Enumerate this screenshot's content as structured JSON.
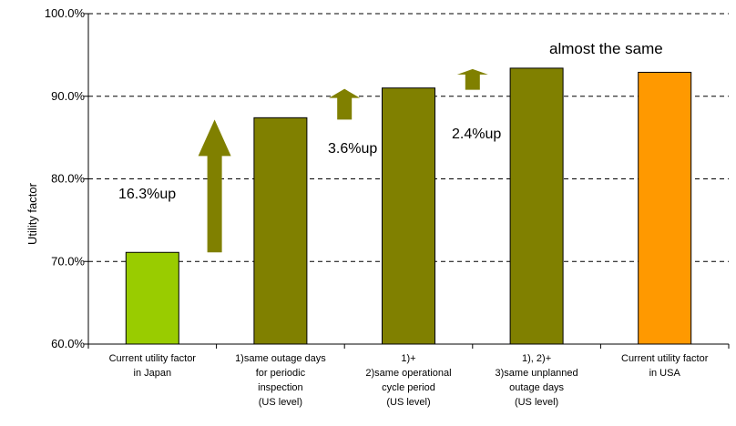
{
  "chart_data": {
    "type": "bar",
    "title": "",
    "xlabel": "",
    "ylabel": "Utility factor",
    "ylim": [
      60,
      100
    ],
    "yticks": [
      "60.0%",
      "70.0%",
      "80.0%",
      "90.0%",
      "100.0%"
    ],
    "ytick_values": [
      60,
      70,
      80,
      90,
      100
    ],
    "grid": "dashed horizontal",
    "categories": [
      [
        "Current utility factor",
        "in Japan"
      ],
      [
        "1)same outage days",
        "for periodic",
        "inspection",
        "(US level)"
      ],
      [
        "1)+",
        "2)same operational",
        "cycle period",
        "(US level)"
      ],
      [
        "1), 2)+",
        "3)same unplanned",
        "outage days",
        "(US level)"
      ],
      [
        "Current utility factor",
        "in USA"
      ]
    ],
    "values": [
      71.1,
      87.4,
      91.0,
      93.4,
      92.9
    ],
    "bar_colors": [
      "#99CC00",
      "#808000",
      "#808000",
      "#808000",
      "#FF9900"
    ],
    "annotations": {
      "up1": "16.3%up",
      "up2": "3.6%up",
      "up3": "2.4%up",
      "same": "almost the same"
    },
    "arrow_color": "#808000"
  }
}
